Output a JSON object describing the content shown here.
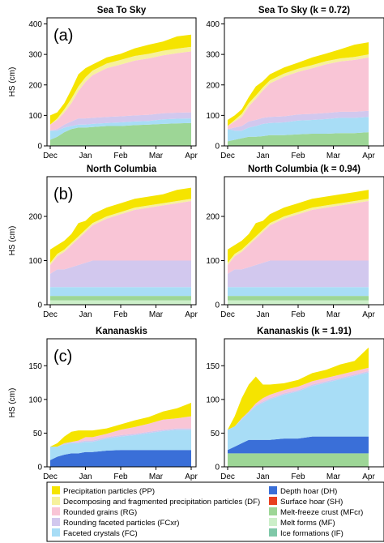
{
  "chart_data": {
    "type": "area",
    "x_ticks": [
      "Dec",
      "Jan",
      "Feb",
      "Mar",
      "Apr"
    ],
    "ylabel": "HS (cm)",
    "layer_order": [
      "IF",
      "MF",
      "MFcr",
      "DH",
      "FC",
      "FCxr",
      "RG",
      "DF",
      "PP"
    ],
    "legend": [
      {
        "code": "PP",
        "label": "Precipitation particles (PP)",
        "color": "#F5E400"
      },
      {
        "code": "DF",
        "label": "Decomposing and fragmented precipitation particles (DF)",
        "color": "#F6F19C"
      },
      {
        "code": "RG",
        "label": "Rounded grains (RG)",
        "color": "#F9C5D6"
      },
      {
        "code": "FCxr",
        "label": "Rounding faceted particles (FCxr)",
        "color": "#D2C8EE"
      },
      {
        "code": "FC",
        "label": "Faceted crystals (FC)",
        "color": "#A8DDF6"
      },
      {
        "code": "DH",
        "label": "Depth hoar (DH)",
        "color": "#3A6FD8"
      },
      {
        "code": "SH",
        "label": "Surface hoar (SH)",
        "color": "#E84020"
      },
      {
        "code": "MFcr",
        "label": "Melt-freeze crust (MFcr)",
        "color": "#9DD696"
      },
      {
        "code": "MF",
        "label": "Melt forms (MF)",
        "color": "#CCEFC9"
      },
      {
        "code": "IF",
        "label": "Ice formations (IF)",
        "color": "#7FC8A8"
      }
    ],
    "panels": [
      {
        "title": "Sea To Sky",
        "panel_label": "(a)",
        "ylim": [
          0,
          420
        ],
        "yticks": [
          0,
          100,
          200,
          300,
          400
        ],
        "x": [
          0,
          0.05,
          0.1,
          0.15,
          0.2,
          0.25,
          0.3,
          0.4,
          0.5,
          0.6,
          0.7,
          0.8,
          0.9,
          1.0
        ],
        "layers": {
          "IF": [
            0,
            0,
            0,
            0,
            0,
            0,
            0,
            0,
            0,
            0,
            0,
            0,
            0,
            0
          ],
          "MF": [
            0,
            0,
            0,
            0,
            0,
            0,
            0,
            0,
            0,
            0,
            0,
            0,
            0,
            0
          ],
          "MFcr": [
            20,
            30,
            45,
            55,
            60,
            60,
            62,
            65,
            65,
            68,
            70,
            72,
            74,
            75
          ],
          "DH": [
            0,
            0,
            0,
            0,
            0,
            0,
            0,
            0,
            0,
            0,
            0,
            0,
            0,
            0
          ],
          "FC": [
            30,
            20,
            15,
            10,
            10,
            10,
            10,
            10,
            12,
            12,
            12,
            15,
            15,
            15
          ],
          "FCxr": [
            0,
            5,
            10,
            15,
            20,
            20,
            20,
            20,
            20,
            20,
            20,
            20,
            20,
            20
          ],
          "RG": [
            20,
            30,
            40,
            60,
            90,
            120,
            140,
            160,
            170,
            180,
            185,
            190,
            195,
            200
          ],
          "DF": [
            0,
            5,
            10,
            15,
            15,
            15,
            15,
            15,
            15,
            15,
            15,
            15,
            15,
            15
          ],
          "PP": [
            30,
            20,
            20,
            30,
            40,
            30,
            20,
            20,
            20,
            25,
            30,
            30,
            40,
            40
          ]
        }
      },
      {
        "title": "Sea To Sky (k = 0.72)",
        "panel_label": "",
        "ylim": [
          0,
          420
        ],
        "yticks": [
          0,
          100,
          200,
          300,
          400
        ],
        "x": [
          0,
          0.05,
          0.1,
          0.15,
          0.2,
          0.25,
          0.3,
          0.4,
          0.5,
          0.6,
          0.7,
          0.8,
          0.9,
          1.0
        ],
        "layers": {
          "IF": [
            0,
            0,
            0,
            0,
            0,
            0,
            0,
            0,
            0,
            0,
            0,
            0,
            0,
            0
          ],
          "MF": [
            0,
            0,
            0,
            0,
            0,
            0,
            0,
            0,
            0,
            0,
            0,
            0,
            0,
            0
          ],
          "MFcr": [
            15,
            20,
            25,
            30,
            30,
            32,
            35,
            35,
            38,
            40,
            40,
            42,
            42,
            45
          ],
          "DH": [
            0,
            0,
            0,
            0,
            0,
            0,
            0,
            0,
            0,
            0,
            0,
            0,
            0,
            0
          ],
          "FC": [
            40,
            30,
            25,
            30,
            35,
            40,
            40,
            42,
            45,
            45,
            48,
            50,
            50,
            50
          ],
          "FCxr": [
            0,
            10,
            15,
            20,
            20,
            20,
            20,
            20,
            20,
            20,
            20,
            20,
            20,
            20
          ],
          "RG": [
            10,
            20,
            30,
            50,
            70,
            90,
            110,
            130,
            140,
            150,
            160,
            165,
            170,
            175
          ],
          "DF": [
            0,
            5,
            10,
            10,
            10,
            10,
            10,
            10,
            10,
            10,
            10,
            10,
            10,
            10
          ],
          "PP": [
            20,
            15,
            15,
            20,
            30,
            20,
            20,
            20,
            20,
            25,
            25,
            30,
            40,
            40
          ]
        }
      },
      {
        "title": "North Columbia",
        "panel_label": "(b)",
        "ylim": [
          0,
          290
        ],
        "yticks": [
          0,
          100,
          200
        ],
        "x": [
          0,
          0.05,
          0.1,
          0.15,
          0.2,
          0.25,
          0.3,
          0.4,
          0.5,
          0.6,
          0.7,
          0.8,
          0.9,
          1.0
        ],
        "layers": {
          "IF": [
            0,
            0,
            0,
            0,
            0,
            0,
            0,
            0,
            0,
            0,
            0,
            0,
            0,
            0
          ],
          "MF": [
            10,
            10,
            10,
            10,
            10,
            10,
            10,
            10,
            10,
            10,
            10,
            10,
            10,
            10
          ],
          "MFcr": [
            10,
            10,
            10,
            10,
            10,
            10,
            10,
            10,
            10,
            10,
            10,
            10,
            10,
            10
          ],
          "DH": [
            0,
            0,
            0,
            0,
            0,
            0,
            0,
            0,
            0,
            0,
            0,
            0,
            0,
            0
          ],
          "FC": [
            20,
            20,
            20,
            20,
            20,
            20,
            20,
            20,
            20,
            20,
            20,
            20,
            20,
            20
          ],
          "FCxr": [
            30,
            40,
            40,
            45,
            50,
            55,
            60,
            60,
            60,
            60,
            60,
            60,
            60,
            60
          ],
          "RG": [
            20,
            30,
            40,
            50,
            60,
            70,
            80,
            95,
            105,
            115,
            120,
            125,
            130,
            135
          ],
          "DF": [
            5,
            5,
            5,
            5,
            5,
            5,
            5,
            5,
            5,
            5,
            5,
            5,
            5,
            5
          ],
          "PP": [
            30,
            20,
            20,
            20,
            30,
            20,
            20,
            20,
            20,
            20,
            20,
            20,
            25,
            25
          ]
        }
      },
      {
        "title": "North Columbia (k = 0.94)",
        "panel_label": "",
        "ylim": [
          0,
          290
        ],
        "yticks": [
          0,
          100,
          200
        ],
        "x": [
          0,
          0.05,
          0.1,
          0.15,
          0.2,
          0.25,
          0.3,
          0.4,
          0.5,
          0.6,
          0.7,
          0.8,
          0.9,
          1.0
        ],
        "layers": {
          "IF": [
            0,
            0,
            0,
            0,
            0,
            0,
            0,
            0,
            0,
            0,
            0,
            0,
            0,
            0
          ],
          "MF": [
            10,
            10,
            10,
            10,
            10,
            10,
            10,
            10,
            10,
            10,
            10,
            10,
            10,
            10
          ],
          "MFcr": [
            10,
            10,
            10,
            10,
            10,
            10,
            10,
            10,
            10,
            10,
            10,
            10,
            10,
            10
          ],
          "DH": [
            0,
            0,
            0,
            0,
            0,
            0,
            0,
            0,
            0,
            0,
            0,
            0,
            0,
            0
          ],
          "FC": [
            20,
            20,
            20,
            20,
            20,
            20,
            20,
            20,
            20,
            20,
            20,
            20,
            20,
            20
          ],
          "FCxr": [
            30,
            40,
            40,
            45,
            50,
            55,
            60,
            60,
            60,
            60,
            60,
            60,
            60,
            60
          ],
          "RG": [
            20,
            30,
            40,
            50,
            60,
            70,
            80,
            95,
            105,
            115,
            120,
            125,
            130,
            135
          ],
          "DF": [
            5,
            5,
            5,
            5,
            5,
            5,
            5,
            5,
            5,
            5,
            5,
            5,
            5,
            5
          ],
          "PP": [
            30,
            20,
            20,
            20,
            30,
            20,
            20,
            20,
            20,
            20,
            20,
            20,
            20,
            20
          ]
        }
      },
      {
        "title": "Kananaskis",
        "panel_label": "(c)",
        "ylim": [
          0,
          190
        ],
        "yticks": [
          0,
          50,
          100,
          150
        ],
        "x": [
          0,
          0.05,
          0.1,
          0.15,
          0.2,
          0.25,
          0.3,
          0.4,
          0.5,
          0.6,
          0.7,
          0.8,
          0.9,
          1.0
        ],
        "layers": {
          "IF": [
            0,
            0,
            0,
            0,
            0,
            0,
            0,
            0,
            0,
            0,
            0,
            0,
            0,
            0
          ],
          "MF": [
            0,
            0,
            0,
            0,
            0,
            0,
            0,
            0,
            0,
            0,
            0,
            0,
            0,
            0
          ],
          "MFcr": [
            0,
            0,
            0,
            0,
            0,
            0,
            0,
            0,
            0,
            0,
            0,
            0,
            0,
            0
          ],
          "DH": [
            10,
            15,
            18,
            20,
            20,
            22,
            22,
            24,
            25,
            25,
            25,
            25,
            25,
            25
          ],
          "FC": [
            20,
            15,
            15,
            15,
            15,
            15,
            15,
            18,
            20,
            22,
            25,
            28,
            30,
            30
          ],
          "FCxr": [
            0,
            0,
            2,
            2,
            2,
            2,
            2,
            2,
            2,
            2,
            2,
            2,
            2,
            2
          ],
          "RG": [
            0,
            0,
            0,
            0,
            2,
            5,
            5,
            5,
            8,
            10,
            12,
            15,
            15,
            18
          ],
          "DF": [
            0,
            0,
            0,
            0,
            0,
            0,
            0,
            0,
            0,
            0,
            0,
            0,
            0,
            0
          ],
          "PP": [
            0,
            5,
            10,
            15,
            15,
            10,
            10,
            8,
            8,
            10,
            10,
            12,
            15,
            20
          ]
        }
      },
      {
        "title": "Kananaskis (k = 1.91)",
        "panel_label": "",
        "ylim": [
          0,
          190
        ],
        "yticks": [
          0,
          50,
          100,
          150
        ],
        "x": [
          0,
          0.05,
          0.1,
          0.15,
          0.2,
          0.25,
          0.3,
          0.4,
          0.5,
          0.6,
          0.7,
          0.8,
          0.9,
          1.0
        ],
        "layers": {
          "IF": [
            0,
            0,
            0,
            0,
            0,
            0,
            0,
            0,
            0,
            0,
            0,
            0,
            0,
            0
          ],
          "MF": [
            0,
            0,
            0,
            0,
            0,
            0,
            0,
            0,
            0,
            0,
            0,
            0,
            0,
            0
          ],
          "MFcr": [
            20,
            20,
            20,
            20,
            20,
            20,
            20,
            20,
            20,
            20,
            20,
            20,
            20,
            20
          ],
          "DH": [
            5,
            10,
            15,
            20,
            20,
            20,
            20,
            22,
            22,
            25,
            25,
            25,
            25,
            25
          ],
          "FC": [
            30,
            30,
            35,
            40,
            50,
            55,
            60,
            65,
            70,
            75,
            80,
            85,
            90,
            95
          ],
          "FCxr": [
            0,
            0,
            2,
            2,
            2,
            2,
            2,
            2,
            2,
            2,
            2,
            2,
            2,
            2
          ],
          "RG": [
            0,
            0,
            0,
            0,
            2,
            5,
            5,
            5,
            5,
            5,
            5,
            5,
            5,
            5
          ],
          "DF": [
            0,
            0,
            0,
            0,
            0,
            0,
            0,
            0,
            0,
            0,
            0,
            0,
            0,
            0
          ],
          "PP": [
            0,
            15,
            30,
            40,
            40,
            20,
            15,
            10,
            10,
            12,
            12,
            15,
            15,
            30
          ]
        }
      }
    ]
  }
}
